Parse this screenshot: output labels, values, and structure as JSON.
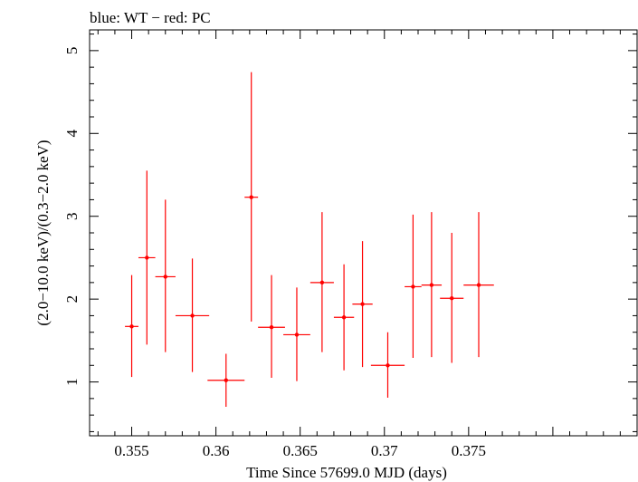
{
  "header": {
    "title": "blue: WT − red: PC"
  },
  "chart_data": {
    "type": "scatter",
    "title": "blue: WT − red: PC",
    "xlabel": "Time Since 57699.0 MJD (days)",
    "ylabel": "(2.0−10.0 keV)/(0.3−2.0 keV)",
    "xlim": [
      0.3525,
      0.385
    ],
    "ylim": [
      0.35,
      5.25
    ],
    "x_ticks": [
      {
        "value": 0.355,
        "label": "0.355"
      },
      {
        "value": 0.36,
        "label": "0.36"
      },
      {
        "value": 0.365,
        "label": "0.365"
      },
      {
        "value": 0.37,
        "label": "0.37"
      },
      {
        "value": 0.375,
        "label": "0.375"
      }
    ],
    "y_ticks": [
      {
        "value": 1,
        "label": "1"
      },
      {
        "value": 2,
        "label": "2"
      },
      {
        "value": 3,
        "label": "3"
      },
      {
        "value": 4,
        "label": "4"
      },
      {
        "value": 5,
        "label": "5"
      }
    ],
    "grid": false,
    "series": [
      {
        "color": "#ff0000",
        "points": [
          {
            "x": 0.355,
            "xerr": 0.0004,
            "y": 1.67,
            "ylo": 1.06,
            "yhi": 2.29
          },
          {
            "x": 0.3559,
            "xerr": 0.0005,
            "y": 2.5,
            "ylo": 1.45,
            "yhi": 3.55
          },
          {
            "x": 0.357,
            "xerr": 0.0006,
            "y": 2.27,
            "ylo": 1.36,
            "yhi": 3.2
          },
          {
            "x": 0.3586,
            "xerr": 0.001,
            "y": 1.8,
            "ylo": 1.12,
            "yhi": 2.49
          },
          {
            "x": 0.3606,
            "xerr": 0.0011,
            "y": 1.02,
            "ylo": 0.7,
            "yhi": 1.34
          },
          {
            "x": 0.3621,
            "xerr": 0.0004,
            "y": 3.23,
            "ylo": 1.73,
            "yhi": 4.74
          },
          {
            "x": 0.3633,
            "xerr": 0.0008,
            "y": 1.66,
            "ylo": 1.05,
            "yhi": 2.29
          },
          {
            "x": 0.3648,
            "xerr": 0.0008,
            "y": 1.57,
            "ylo": 1.01,
            "yhi": 2.14
          },
          {
            "x": 0.3663,
            "xerr": 0.0007,
            "y": 2.2,
            "ylo": 1.36,
            "yhi": 3.05
          },
          {
            "x": 0.3676,
            "xerr": 0.0006,
            "y": 1.78,
            "ylo": 1.14,
            "yhi": 2.42
          },
          {
            "x": 0.3687,
            "xerr": 0.0006,
            "y": 1.94,
            "ylo": 1.18,
            "yhi": 2.7
          },
          {
            "x": 0.3702,
            "xerr": 0.001,
            "y": 1.2,
            "ylo": 0.81,
            "yhi": 1.6
          },
          {
            "x": 0.3717,
            "xerr": 0.0005,
            "y": 2.15,
            "ylo": 1.29,
            "yhi": 3.02
          },
          {
            "x": 0.3728,
            "xerr": 0.0006,
            "y": 2.17,
            "ylo": 1.3,
            "yhi": 3.05
          },
          {
            "x": 0.374,
            "xerr": 0.0007,
            "y": 2.01,
            "ylo": 1.23,
            "yhi": 2.8
          },
          {
            "x": 0.3756,
            "xerr": 0.0009,
            "y": 2.17,
            "ylo": 1.3,
            "yhi": 3.05
          }
        ]
      }
    ]
  }
}
